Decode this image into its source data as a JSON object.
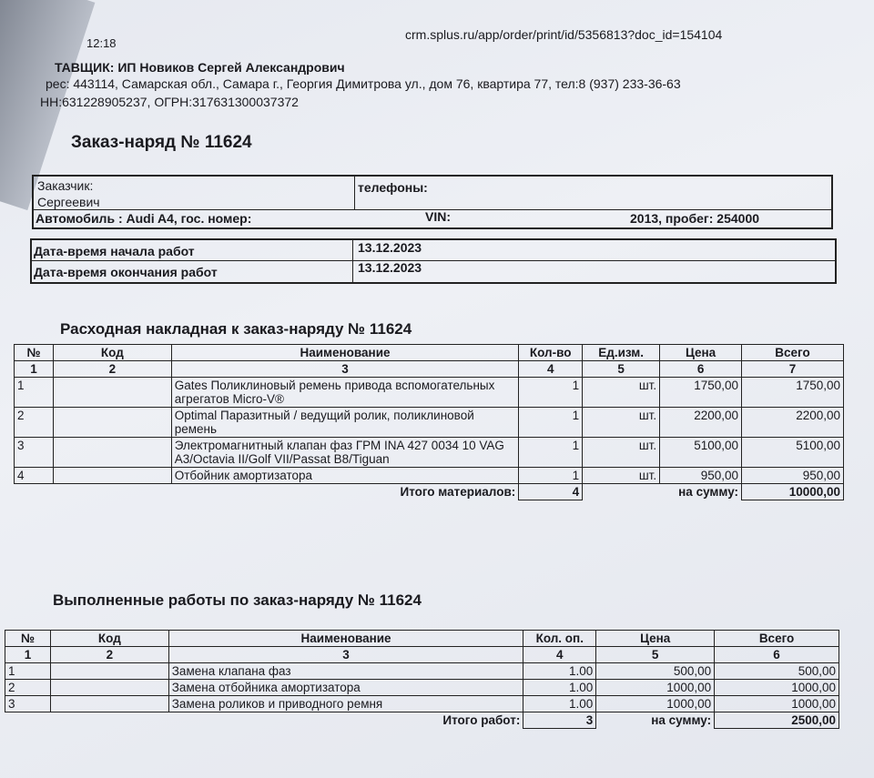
{
  "header": {
    "url": "crm.splus.ru/app/order/print/id/5356813?doc_id=154104",
    "time": "12:18",
    "supplier_label": "ТАВЩИК:",
    "supplier_name": "ИП Новиков Сергей Александрович",
    "address": "рес: 443114, Самарская обл., Самара г., Георгия Димитрова ул., дом 76, квартира 77, тел:8 (937) 233-36-63",
    "inn": "НН:631228905237, ОГРН:317631300037372"
  },
  "title": "Заказ-наряд № 11624",
  "info": {
    "customer_label": "Заказчик:",
    "customer_name": "Сергеевич",
    "phones_label": "телефоны:",
    "car": "Автомобиль : Audi A4, гос. номер:",
    "vin_label": "VIN:",
    "year_mileage": "2013, пробег: 254000"
  },
  "dates": {
    "start_label": "Дата-время начала работ",
    "start_value": "13.12.2023",
    "end_label": "Дата-время окончания работ",
    "end_value": "13.12.2023"
  },
  "materials": {
    "title": "Расходная накладная к заказ-наряду №  11624",
    "headers": [
      "№",
      "Код",
      "Наименование",
      "Кол-во",
      "Ед.изм.",
      "Цена",
      "Всего"
    ],
    "col_numbers": [
      "1",
      "2",
      "3",
      "4",
      "5",
      "6",
      "7"
    ],
    "rows": [
      {
        "n": "1",
        "code": "",
        "name": "Gates Поликлиновый ремень привода вспомогательных агрегатов Micro-V®",
        "qty": "1",
        "unit": "шт.",
        "price": "1750,00",
        "total": "1750,00"
      },
      {
        "n": "2",
        "code": "",
        "name": "Optimal Паразитный / ведущий ролик, поликлиновой ремень",
        "qty": "1",
        "unit": "шт.",
        "price": "2200,00",
        "total": "2200,00"
      },
      {
        "n": "3",
        "code": "",
        "name": "Электромагнитный клапан фаз ГРМ INA 427 0034 10 VAG A3/Octavia II/Golf VII/Passat B8/Tiguan",
        "qty": "1",
        "unit": "шт.",
        "price": "5100,00",
        "total": "5100,00"
      },
      {
        "n": "4",
        "code": "",
        "name": "Отбойник амортизатора",
        "qty": "1",
        "unit": "шт.",
        "price": "950,00",
        "total": "950,00"
      }
    ],
    "total_label": "Итого материалов:",
    "total_qty": "4",
    "sum_label": "на сумму:",
    "sum_value": "10000,00"
  },
  "works": {
    "title": "Выполненные работы по заказ-наряду №  11624",
    "headers": [
      "№",
      "Код",
      "Наименование",
      "Кол. оп.",
      "Цена",
      "Всего"
    ],
    "col_numbers": [
      "1",
      "2",
      "3",
      "4",
      "5",
      "6"
    ],
    "rows": [
      {
        "n": "1",
        "code": "",
        "name": "Замена клапана фаз",
        "qty": "1.00",
        "price": "500,00",
        "total": "500,00"
      },
      {
        "n": "2",
        "code": "",
        "name": "Замена отбойника амортизатора",
        "qty": "1.00",
        "price": "1000,00",
        "total": "1000,00"
      },
      {
        "n": "3",
        "code": "",
        "name": "Замена роликов и приводного ремня",
        "qty": "1.00",
        "price": "1000,00",
        "total": "1000,00"
      }
    ],
    "total_label": "Итого работ:",
    "total_qty": "3",
    "sum_label": "на сумму:",
    "sum_value": "2500,00"
  }
}
